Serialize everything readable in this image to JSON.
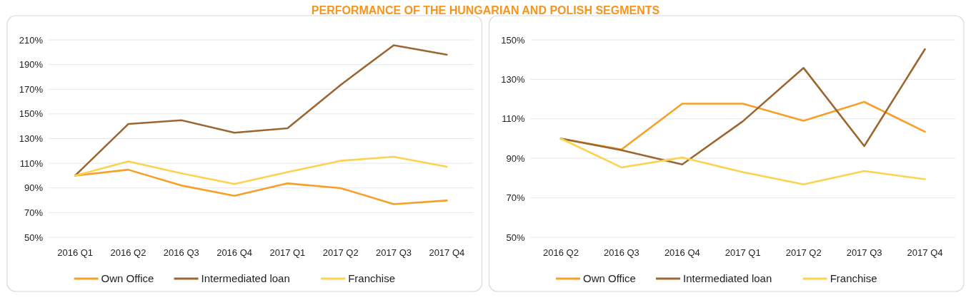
{
  "chart_data": [
    {
      "type": "line",
      "title": "PERFORMANCE OF THE HUNGARIAN AND POLISH SEGMENTS",
      "categories": [
        "2016 Q1",
        "2016 Q2",
        "2016 Q3",
        "2016 Q4",
        "2017 Q1",
        "2017 Q2",
        "2017 Q3",
        "2017 Q4"
      ],
      "series": [
        {
          "name": "Own Office",
          "color": "#f7a028",
          "values": [
            100,
            104.8,
            92,
            83.6,
            93.7,
            89.9,
            76.9,
            79.8
          ]
        },
        {
          "name": "Intermediated loan",
          "color": "#9c6630",
          "values": [
            100,
            141.8,
            144.9,
            134.8,
            138.4,
            173.5,
            205.7,
            198
          ]
        },
        {
          "name": "Franchise",
          "color": "#fdd24e",
          "values": [
            100,
            111.5,
            101.9,
            93.2,
            102.9,
            112,
            115.3,
            107.2
          ]
        }
      ],
      "ylim": [
        50,
        210
      ],
      "yticks": [
        {
          "value": 50,
          "label": "50%"
        },
        {
          "value": 70,
          "label": "70%"
        },
        {
          "value": 90,
          "label": "90%"
        },
        {
          "value": 110,
          "label": "110%"
        },
        {
          "value": 130,
          "label": "130%"
        },
        {
          "value": 150,
          "label": "150%"
        },
        {
          "value": 170,
          "label": "170%"
        },
        {
          "value": 190,
          "label": "190%"
        },
        {
          "value": 210,
          "label": "210%"
        }
      ],
      "grid": "y",
      "legend": "bottom",
      "marker": "none"
    },
    {
      "type": "line",
      "categories": [
        "2016 Q2",
        "2016 Q3",
        "2016 Q4",
        "2017 Q1",
        "2017 Q2",
        "2017 Q3",
        "2017 Q4"
      ],
      "series": [
        {
          "name": "Own Office",
          "color": "#f7a028",
          "values": [
            100,
            94.5,
            117.7,
            117.7,
            109,
            118.6,
            103.5
          ]
        },
        {
          "name": "Intermediated loan",
          "color": "#9c6630",
          "values": [
            100,
            94.1,
            86.9,
            108.8,
            135.8,
            96.2,
            145.3
          ]
        },
        {
          "name": "Franchise",
          "color": "#fdd24e",
          "values": [
            100,
            85.4,
            90.4,
            83,
            76.8,
            83.6,
            79.4
          ]
        }
      ],
      "ylim": [
        50,
        150
      ],
      "yticks": [
        {
          "value": 50,
          "label": "50%"
        },
        {
          "value": 70,
          "label": "70%"
        },
        {
          "value": 90,
          "label": "90%"
        },
        {
          "value": 110,
          "label": "110%"
        },
        {
          "value": 130,
          "label": "130%"
        },
        {
          "value": 150,
          "label": "150%"
        }
      ],
      "grid": "y",
      "legend": "bottom",
      "marker": "none"
    }
  ]
}
